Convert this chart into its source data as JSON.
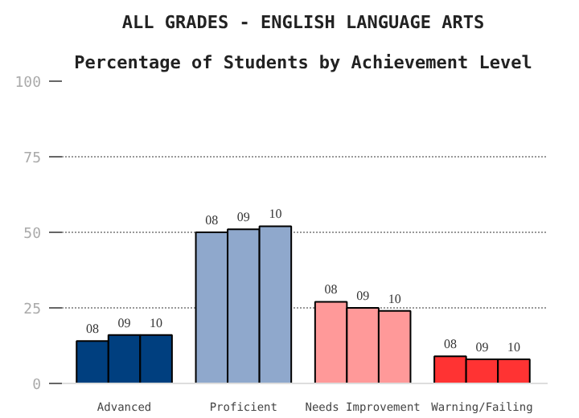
{
  "chart_data": {
    "type": "bar",
    "title": "ALL GRADES - ENGLISH LANGUAGE ARTS",
    "subtitle": "Percentage of Students by Achievement Level",
    "categories": [
      "Advanced",
      "Proficient",
      "Needs Improvement",
      "Warning/Failing"
    ],
    "series": [
      {
        "name": "08",
        "colors": [
          "#003f7f",
          "#8fa8cc",
          "#ff9999",
          "#ff3333"
        ],
        "values": [
          14,
          50,
          27,
          9
        ]
      },
      {
        "name": "09",
        "colors": [
          "#003f7f",
          "#8fa8cc",
          "#ff9999",
          "#ff3333"
        ],
        "values": [
          16,
          51,
          25,
          8
        ]
      },
      {
        "name": "10",
        "colors": [
          "#003f7f",
          "#8fa8cc",
          "#ff9999",
          "#ff3333"
        ],
        "values": [
          16,
          52,
          24,
          8
        ]
      }
    ],
    "ylim": [
      0,
      100
    ],
    "yticks": [
      0,
      25,
      50,
      75,
      100
    ],
    "grid": "y"
  }
}
